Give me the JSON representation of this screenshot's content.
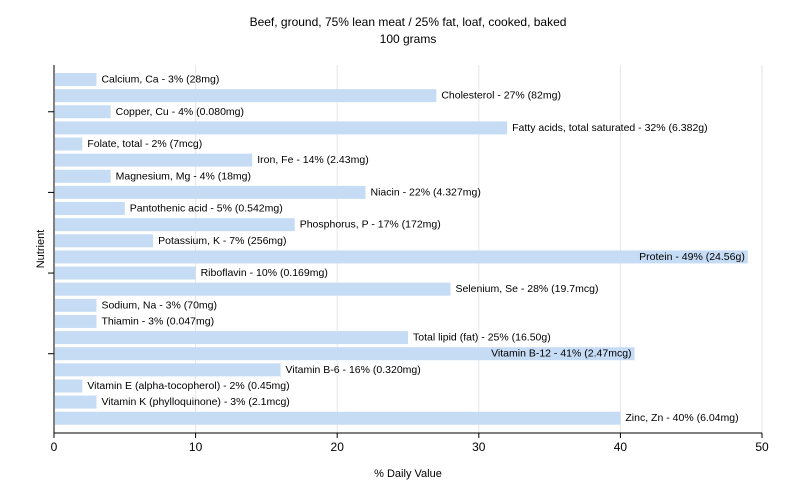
{
  "chart_data": {
    "type": "bar",
    "orientation": "horizontal",
    "title": "Beef, ground, 75% lean meat / 25% fat, loaf, cooked, baked",
    "subtitle": "100 grams",
    "xlabel": "% Daily Value",
    "ylabel": "Nutrient",
    "xlim": [
      0,
      50
    ],
    "xticks": [
      0,
      10,
      20,
      30,
      40,
      50
    ],
    "grid": true,
    "bar_color": "#c6dcf5",
    "categories": [
      "Calcium, Ca",
      "Cholesterol",
      "Copper, Cu",
      "Fatty acids, total saturated",
      "Folate, total",
      "Iron, Fe",
      "Magnesium, Mg",
      "Niacin",
      "Pantothenic acid",
      "Phosphorus, P",
      "Potassium, K",
      "Protein",
      "Riboflavin",
      "Selenium, Se",
      "Sodium, Na",
      "Thiamin",
      "Total lipid (fat)",
      "Vitamin B-12",
      "Vitamin B-6",
      "Vitamin E (alpha-tocopherol)",
      "Vitamin K (phylloquinone)",
      "Zinc, Zn"
    ],
    "values": [
      3,
      27,
      4,
      32,
      2,
      14,
      4,
      22,
      5,
      17,
      7,
      49,
      10,
      28,
      3,
      3,
      25,
      41,
      16,
      2,
      3,
      40
    ],
    "labels": [
      "Calcium, Ca - 3% (28mg)",
      "Cholesterol - 27% (82mg)",
      "Copper, Cu - 4% (0.080mg)",
      "Fatty acids, total saturated - 32% (6.382g)",
      "Folate, total - 2% (7mcg)",
      "Iron, Fe - 14% (2.43mg)",
      "Magnesium, Mg - 4% (18mg)",
      "Niacin - 22% (4.327mg)",
      "Pantothenic acid - 5% (0.542mg)",
      "Phosphorus, P - 17% (172mg)",
      "Potassium, K - 7% (256mg)",
      "Protein - 49% (24.56g)",
      "Riboflavin - 10% (0.169mg)",
      "Selenium, Se - 28% (19.7mcg)",
      "Sodium, Na - 3% (70mg)",
      "Thiamin - 3% (0.047mg)",
      "Total lipid (fat) - 25% (16.50g)",
      "Vitamin B-12 - 41% (2.47mcg)",
      "Vitamin B-6 - 16% (0.320mg)",
      "Vitamin E (alpha-tocopherol) - 2% (0.45mg)",
      "Vitamin K (phylloquinone) - 3% (2.1mcg)",
      "Zinc, Zn - 40% (6.04mg)"
    ]
  }
}
